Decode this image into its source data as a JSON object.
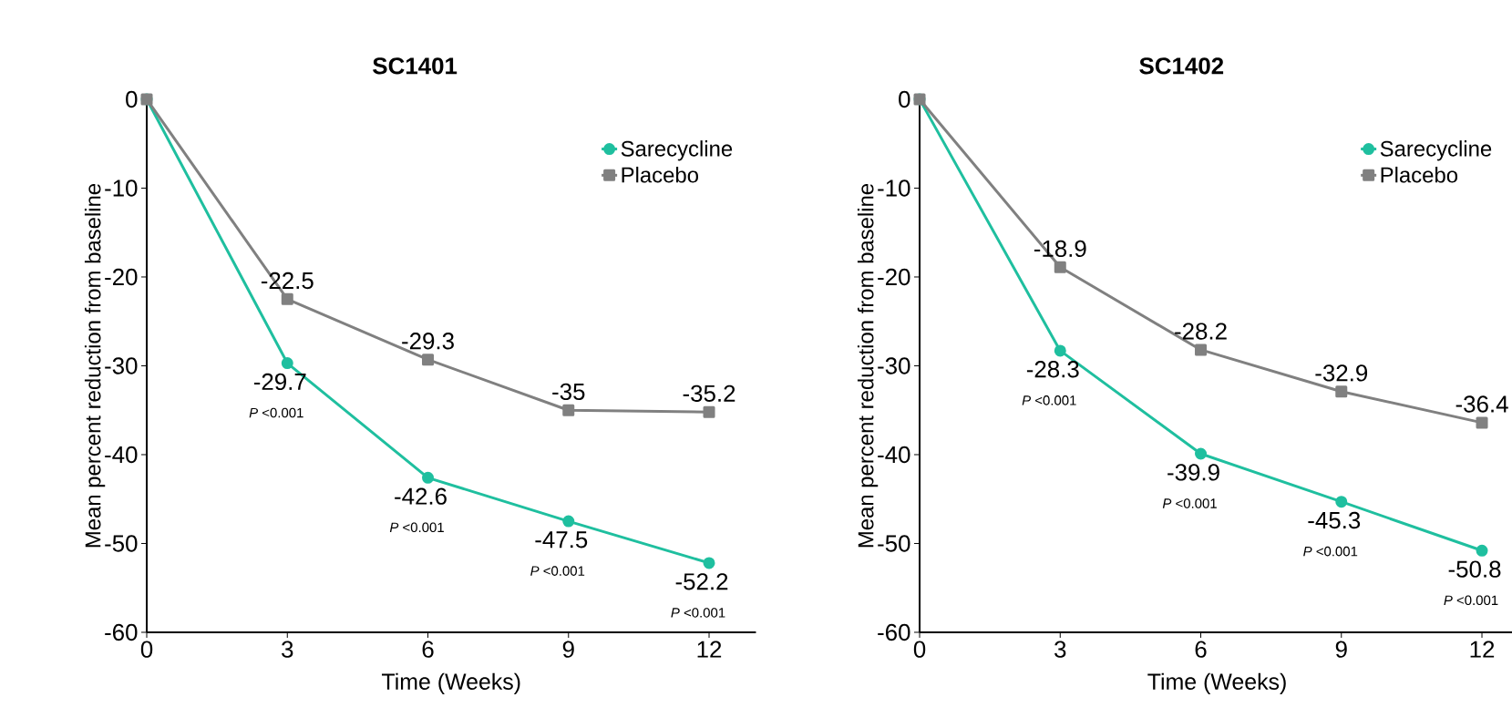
{
  "chart_data": [
    {
      "type": "line",
      "title": "SC1401",
      "xlabel": "Time (Weeks)",
      "ylabel": "Mean percent reduction from baseline",
      "x": [
        0,
        3,
        6,
        9,
        12
      ],
      "xlim": [
        0,
        13
      ],
      "xticks": [
        0,
        3,
        6,
        9,
        12
      ],
      "ylim": [
        -60,
        0
      ],
      "yticks": [
        -60,
        -50,
        -40,
        -30,
        -20,
        -10,
        0
      ],
      "legend": "top right",
      "series": [
        {
          "name": "Sarecycline",
          "color": "#1fbf9f",
          "marker": "circle",
          "values": [
            0,
            -29.7,
            -42.6,
            -47.5,
            -52.2
          ],
          "value_labels": [
            null,
            "-29.7",
            "-42.6",
            "-47.5",
            "-52.2"
          ]
        },
        {
          "name": "Placebo",
          "color": "#808080",
          "marker": "square",
          "values": [
            0,
            -22.5,
            -29.3,
            -35,
            -35.2
          ],
          "value_labels": [
            null,
            "-22.5",
            "-29.3",
            "-35",
            "-35.2"
          ]
        }
      ],
      "annotations": [
        "*P* <0.001",
        "*P* <0.001",
        "*P* <0.001",
        "*P* <0.001"
      ]
    },
    {
      "type": "line",
      "title": "SC1402",
      "xlabel": "Time (Weeks)",
      "ylabel": "Mean percent reduction from baseline",
      "x": [
        0,
        3,
        6,
        9,
        12
      ],
      "xlim": [
        0,
        12.7
      ],
      "xticks": [
        0,
        3,
        6,
        9,
        12
      ],
      "ylim": [
        -60,
        0
      ],
      "yticks": [
        -60,
        -50,
        -40,
        -30,
        -20,
        -10,
        0
      ],
      "legend": "top right",
      "series": [
        {
          "name": "Sarecycline",
          "color": "#1fbf9f",
          "marker": "circle",
          "values": [
            0,
            -28.3,
            -39.9,
            -45.3,
            -50.8
          ],
          "value_labels": [
            null,
            "-28.3",
            "-39.9",
            "-45.3",
            "-50.8"
          ]
        },
        {
          "name": "Placebo",
          "color": "#808080",
          "marker": "square",
          "values": [
            0,
            -18.9,
            -28.2,
            -32.9,
            -36.4
          ],
          "value_labels": [
            null,
            "-18.9",
            "-28.2",
            "-32.9",
            "-36.4"
          ]
        }
      ],
      "annotations": [
        "*P* <0.001",
        "*P* <0.001",
        "*P* <0.001",
        "*P* <0.001"
      ]
    }
  ]
}
